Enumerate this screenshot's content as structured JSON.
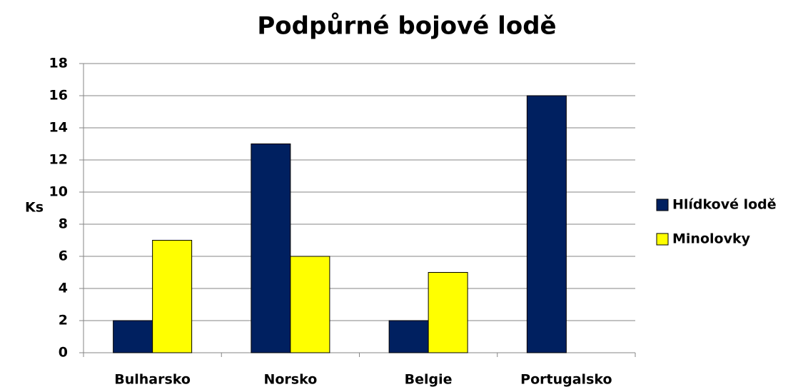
{
  "chart_data": {
    "type": "bar",
    "title": "Podpůrné bojové lodě",
    "y_label": "Ks",
    "categories": [
      "Bulharsko",
      "Norsko",
      "Belgie",
      "Portugalsko"
    ],
    "series": [
      {
        "name": "Hlídkové lodě",
        "color": "#002060",
        "values": [
          2,
          13,
          2,
          16
        ]
      },
      {
        "name": "Minolovky",
        "color": "#ffff00",
        "values": [
          7,
          6,
          5,
          0
        ]
      }
    ],
    "ylim": [
      0,
      18
    ],
    "yticks": [
      0,
      2,
      4,
      6,
      8,
      10,
      12,
      14,
      16,
      18
    ],
    "grid": true,
    "legend": "right"
  }
}
